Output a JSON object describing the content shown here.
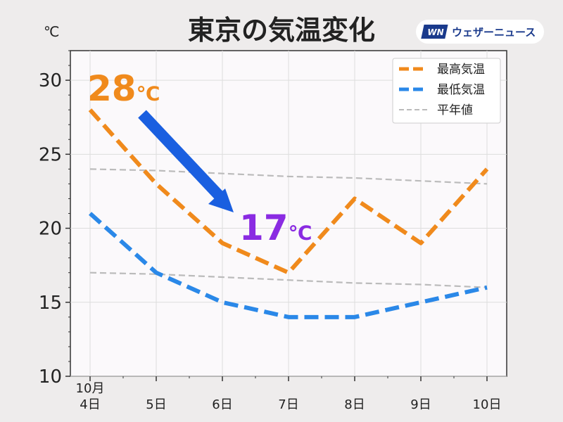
{
  "title": "東京の気温変化",
  "brand": {
    "logo": "WN",
    "name": "ウェザーニュース"
  },
  "colors": {
    "max": "#f08a1c",
    "min": "#2a88e8",
    "normal": "#bbbbbb",
    "annotation_max": "#f08a1c",
    "annotation_min": "#8a2be2",
    "arrow": "#1a5fe0"
  },
  "annotations": {
    "max_value": "28",
    "max_unit": "℃",
    "min_value": "17",
    "min_unit": "℃"
  },
  "chart_data": {
    "type": "line",
    "title": "東京の気温変化",
    "unit": "℃",
    "ylim": [
      10,
      32
    ],
    "yticks": [
      10,
      15,
      20,
      25,
      30
    ],
    "categories": [
      "4日",
      "5日",
      "6日",
      "7日",
      "8日",
      "9日",
      "10日"
    ],
    "month_label": "10月",
    "grid": true,
    "legend_position": "top-right",
    "series": [
      {
        "name": "最高気温",
        "values": [
          28,
          23,
          19,
          17,
          22,
          19,
          24
        ]
      },
      {
        "name": "最低気温",
        "values": [
          21,
          17,
          15,
          14,
          14,
          15,
          16
        ]
      },
      {
        "name": "平年値",
        "values": [
          24,
          23.9,
          23.7,
          23.5,
          23.4,
          23.2,
          23
        ]
      },
      {
        "name": "平年値",
        "values": [
          17,
          16.9,
          16.7,
          16.5,
          16.3,
          16.2,
          16
        ]
      }
    ]
  }
}
